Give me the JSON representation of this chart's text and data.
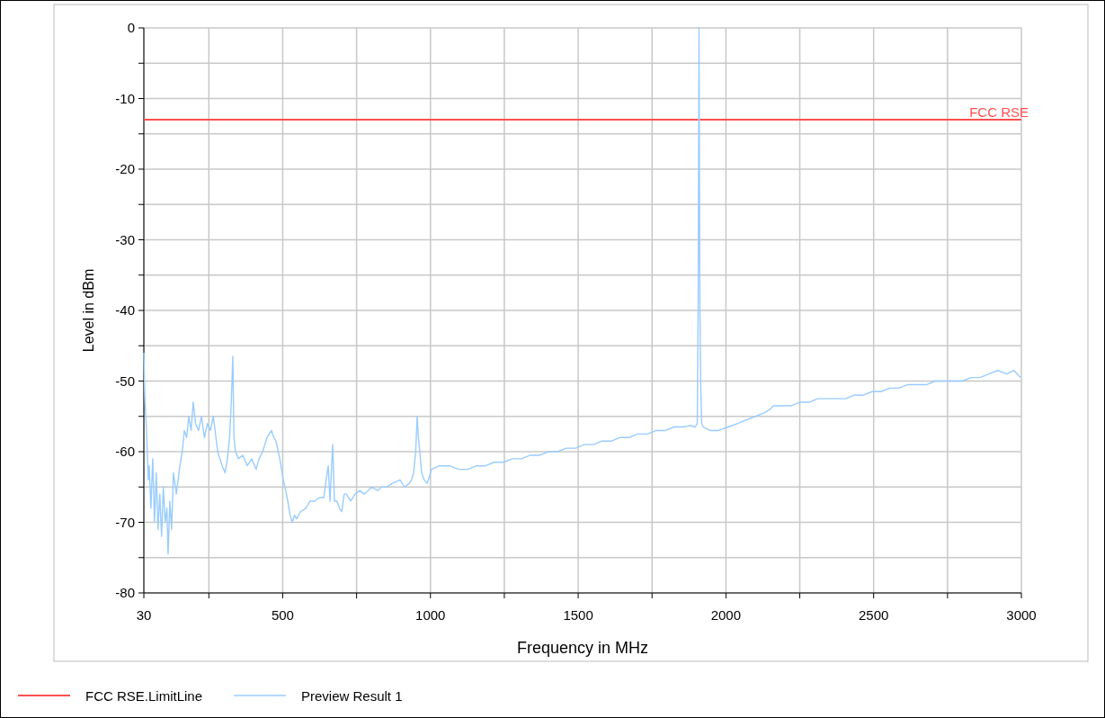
{
  "chart_data": {
    "type": "line",
    "xlabel": "Frequency in MHz",
    "ylabel": "Level in dBm",
    "xlim": [
      30,
      3000
    ],
    "ylim": [
      -80,
      0
    ],
    "xticks": [
      30,
      {
        "value": 250,
        "label": null
      },
      500,
      {
        "value": 750,
        "label": null
      },
      1000,
      {
        "value": 1250,
        "label": null
      },
      1500,
      {
        "value": 1750,
        "label": null
      },
      2000,
      {
        "value": 2250,
        "label": null
      },
      2500,
      {
        "value": 2750,
        "label": null
      },
      3000
    ],
    "yticks": [
      -80,
      {
        "value": -75,
        "label": null
      },
      -70,
      {
        "value": -65,
        "label": null
      },
      -60,
      {
        "value": -55,
        "label": null
      },
      -50,
      {
        "value": -45,
        "label": null
      },
      -40,
      {
        "value": -35,
        "label": null
      },
      -30,
      {
        "value": -25,
        "label": null
      },
      -20,
      {
        "value": -15,
        "label": null
      },
      -10,
      {
        "value": -5,
        "label": null
      },
      0
    ],
    "grid": true,
    "legend": "bottom left",
    "line_style": "solid",
    "marker": "none",
    "annotations": [
      {
        "text": "FCC RSE",
        "x": 3000,
        "y": -13
      }
    ],
    "series": [
      {
        "name": "FCC RSE.LimitLine",
        "color": "#ff5050",
        "x": [
          30,
          3000
        ],
        "values": [
          -13,
          -13
        ]
      },
      {
        "name": "Preview Result 1",
        "color": "#99ccff",
        "x": [
          30,
          33,
          39,
          45,
          48,
          54,
          60,
          66,
          72,
          78,
          84,
          90,
          96,
          102,
          108,
          112,
          118,
          124,
          130,
          140,
          152,
          160,
          167,
          175,
          182,
          190,
          197,
          205,
          215,
          225,
          235,
          245,
          255,
          265,
          280,
          295,
          305,
          313,
          320,
          326,
          331,
          335,
          340,
          350,
          365,
          380,
          395,
          410,
          420,
          432,
          447,
          462,
          470,
          477,
          490,
          502,
          510,
          517,
          525,
          532,
          540,
          547,
          560,
          578,
          593,
          608,
          625,
          639,
          647,
          654,
          660,
          669,
          675,
          684,
          692,
          700,
          708,
          715,
          730,
          745,
          760,
          776,
          790,
          800,
          821,
          835,
          852,
          870,
          897,
          912,
          928,
          936,
          943,
          950,
          955,
          959,
          964,
          970,
          979,
          989,
          1004,
          1030,
          1065,
          1095,
          1126,
          1156,
          1186,
          1216,
          1247,
          1277,
          1308,
          1338,
          1369,
          1400,
          1430,
          1460,
          1491,
          1520,
          1552,
          1580,
          1613,
          1640,
          1673,
          1700,
          1734,
          1765,
          1795,
          1825,
          1856,
          1880,
          1896,
          1903,
          1906,
          1909,
          1912,
          1915,
          1918,
          1923,
          1947,
          1975,
          2008,
          2040,
          2069,
          2100,
          2130,
          2150,
          2160,
          2190,
          2221,
          2250,
          2282,
          2310,
          2343,
          2375,
          2404,
          2435,
          2465,
          2495,
          2525,
          2555,
          2586,
          2615,
          2647,
          2680,
          2708,
          2740,
          2769,
          2800,
          2830,
          2860,
          2890,
          2920,
          2951,
          2975,
          2997
        ],
        "values": [
          -46,
          -52,
          -57,
          -64,
          -62,
          -68,
          -61,
          -70,
          -63,
          -71,
          -66,
          -72,
          -65,
          -70,
          -68,
          -74.5,
          -67,
          -71,
          -63,
          -66,
          -62,
          -60,
          -57,
          -58,
          -55,
          -57,
          -53,
          -56,
          -57,
          -55,
          -58,
          -56,
          -57,
          -55,
          -60,
          -62,
          -63,
          -61,
          -58,
          -53,
          -46.5,
          -58,
          -60,
          -61,
          -60.5,
          -62,
          -61,
          -62.5,
          -61,
          -60,
          -58,
          -57,
          -58,
          -58.5,
          -61,
          -64,
          -65.5,
          -67,
          -69,
          -70,
          -69,
          -69.5,
          -68.5,
          -68,
          -67,
          -67,
          -66.5,
          -66.5,
          -64,
          -62,
          -67,
          -59,
          -67,
          -67,
          -68,
          -68.5,
          -66,
          -66,
          -67,
          -66,
          -65.5,
          -66,
          -65.5,
          -65,
          -65.5,
          -65,
          -65,
          -64.5,
          -64,
          -65,
          -64.5,
          -64,
          -63,
          -60,
          -55,
          -58,
          -60,
          -63,
          -64,
          -64.5,
          -62.5,
          -62,
          -62,
          -62.5,
          -62.5,
          -62,
          -62,
          -61.5,
          -61.5,
          -61,
          -61,
          -60.5,
          -60.5,
          -60,
          -60,
          -59.5,
          -59.5,
          -59,
          -59,
          -58.5,
          -58.5,
          -58,
          -58,
          -57.5,
          -57.5,
          -57,
          -57,
          -56.5,
          -56.5,
          -56.3,
          -56.5,
          -56,
          -40,
          0,
          -40,
          -51,
          -56,
          -56.5,
          -57,
          -57,
          -56.5,
          -56,
          -55.5,
          -55,
          -54.5,
          -54,
          -53.5,
          -53.5,
          -53.5,
          -53,
          -53,
          -52.5,
          -52.5,
          -52.5,
          -52.5,
          -52,
          -52,
          -51.5,
          -51.5,
          -51,
          -51,
          -50.5,
          -50.5,
          -50.5,
          -50,
          -50,
          -50,
          -50,
          -49.5,
          -49.5,
          -49,
          -48.5,
          -49,
          -48.5,
          -49.5
        ]
      }
    ]
  }
}
